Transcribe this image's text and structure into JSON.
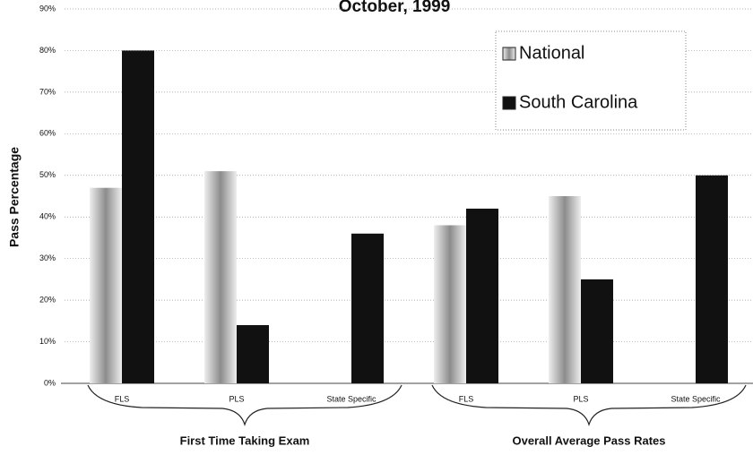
{
  "chart_data": {
    "type": "bar",
    "title": "October, 1999",
    "y_label": "Pass Percentage",
    "categories": [
      "FLS",
      "PLS",
      "State Specific",
      "FLS",
      "PLS",
      "State Specific"
    ],
    "group_labels": [
      "First Time Taking Exam",
      "Overall Average Pass Rates"
    ],
    "series": [
      {
        "name": "National",
        "color": "#8c8c8c",
        "values": [
          47,
          51,
          null,
          38,
          45,
          null
        ]
      },
      {
        "name": "South Carolina",
        "color": "#111111",
        "values": [
          80,
          14,
          36,
          42,
          25,
          50
        ]
      }
    ],
    "ylim": [
      0,
      90
    ],
    "yticks": [
      {
        "value": 0,
        "label": "0%"
      },
      {
        "value": 10,
        "label": "10%"
      },
      {
        "value": 20,
        "label": "20%"
      },
      {
        "value": 30,
        "label": "30%"
      },
      {
        "value": 40,
        "label": "40%"
      },
      {
        "value": 50,
        "label": "50%"
      },
      {
        "value": 60,
        "label": "60%"
      },
      {
        "value": 70,
        "label": "70%"
      },
      {
        "value": 80,
        "label": "80%"
      },
      {
        "value": 90,
        "label": "90%"
      }
    ],
    "grid": true,
    "legend": "upper right"
  }
}
